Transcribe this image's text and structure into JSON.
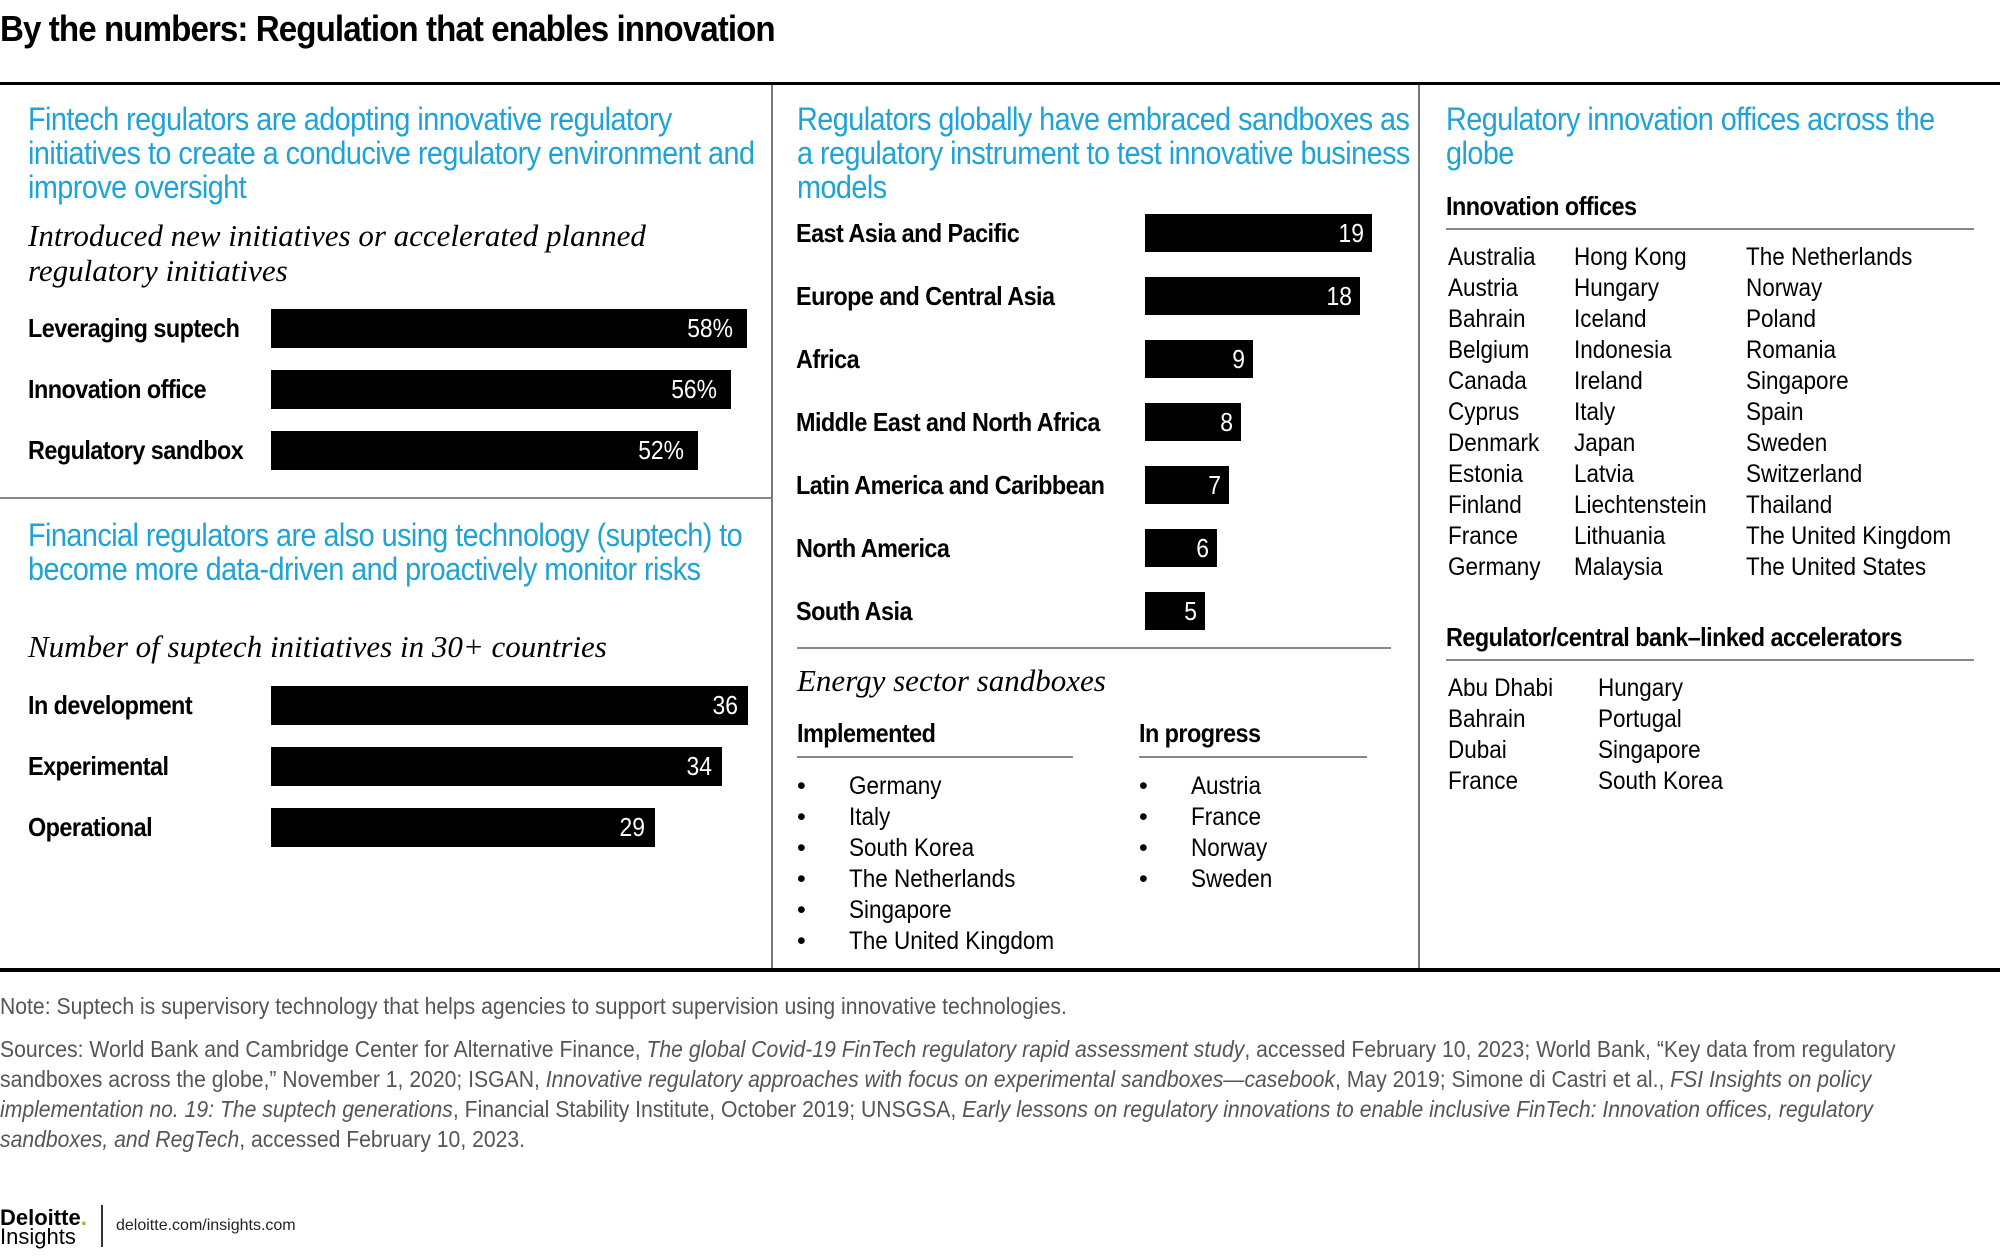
{
  "title": "By the numbers: Regulation that enables innovation",
  "col1": {
    "section1": {
      "heading": "Fintech regulators are adopting innovative regulatory initiatives to create a conducive regulatory environment and improve oversight",
      "subtitle": "Introduced new initiatives or accelerated planned regulatory initiatives"
    },
    "section2": {
      "heading": "Financial regulators are also using technology (suptech) to become more data-driven and proactively monitor risks",
      "subtitle": "Number of suptech initiatives in 30+ countries"
    }
  },
  "col2": {
    "heading": "Regulators globally have embraced sandboxes as a regulatory instrument to test innovative business models",
    "energy": {
      "subtitle": "Energy sector sandboxes",
      "implemented_label": "Implemented",
      "implemented": [
        "Germany",
        "Italy",
        "South Korea",
        "The Netherlands",
        "Singapore",
        "The United Kingdom"
      ],
      "in_progress_label": "In progress",
      "in_progress": [
        "Austria",
        "France",
        "Norway",
        "Sweden"
      ],
      "bullet": "•"
    }
  },
  "col3": {
    "heading": "Regulatory innovation offices across the globe",
    "offices_label": "Innovation offices",
    "offices": [
      [
        "Australia",
        "Austria",
        "Bahrain",
        "Belgium",
        "Canada",
        "Cyprus",
        "Denmark",
        "Estonia",
        "Finland",
        "France",
        "Germany"
      ],
      [
        "Hong Kong",
        "Hungary",
        "Iceland",
        "Indonesia",
        "Ireland",
        "Italy",
        "Japan",
        "Latvia",
        "Liechtenstein",
        "Lithuania",
        "Malaysia"
      ],
      [
        "The Netherlands",
        "Norway",
        "Poland",
        "Romania",
        "Singapore",
        "Spain",
        "Sweden",
        "Switzerland",
        "Thailand",
        "The United Kingdom",
        "The United States"
      ]
    ],
    "accelerators_label": "Regulator/central bank–linked accelerators",
    "accelerators": [
      [
        "Abu Dhabi",
        "Bahrain",
        "Dubai",
        "France"
      ],
      [
        "Hungary",
        "Portugal",
        "Singapore",
        "South Korea"
      ]
    ]
  },
  "footer": {
    "note": "Note: Suptech is supervisory technology that helps agencies to support supervision using innovative technologies.",
    "sources_parts": [
      {
        "t": "Sources: World Bank and Cambridge Center for Alternative Finance, ",
        "i": false
      },
      {
        "t": "The global Covid-19 FinTech regulatory rapid assessment study",
        "i": true
      },
      {
        "t": ", accessed February 10, 2023; World Bank, “Key data from regulatory sandboxes across the globe,” November 1, 2020; ISGAN, ",
        "i": false
      },
      {
        "t": "Innovative regulatory approaches with focus on experimental sandboxes—casebook",
        "i": true
      },
      {
        "t": ", May 2019; Simone di Castri et al., ",
        "i": false
      },
      {
        "t": "FSI Insights on policy implementation no. 19: The suptech generations",
        "i": true
      },
      {
        "t": ", Financial Stability Institute, October 2019; UNSGSA, ",
        "i": false
      },
      {
        "t": "Early lessons on regulatory innovations to enable inclusive FinTech: Innovation offices, regulatory sandboxes, and RegTech",
        "i": true
      },
      {
        "t": ", accessed February 10, 2023.",
        "i": false
      }
    ],
    "logo_brand": "Deloitte",
    "logo_dot": ".",
    "logo_sub": "Insights",
    "url": "deloitte.com/insights.com"
  },
  "colors": {
    "accent_blue": "#1FA3D6",
    "bar": "#000000",
    "logo_green": "#86BC25"
  },
  "chart_data": [
    {
      "type": "bar",
      "orientation": "horizontal",
      "title": "Introduced new initiatives or accelerated planned regulatory initiatives",
      "categories": [
        "Leveraging suptech",
        "Innovation office",
        "Regulatory sandbox"
      ],
      "values": [
        58,
        56,
        52
      ],
      "value_labels": [
        "58%",
        "56%",
        "52%"
      ],
      "unit": "%",
      "xlim": [
        0,
        58
      ],
      "grid": false
    },
    {
      "type": "bar",
      "orientation": "horizontal",
      "title": "Number of suptech initiatives in 30+ countries",
      "categories": [
        "In development",
        "Experimental",
        "Operational"
      ],
      "values": [
        36,
        34,
        29
      ],
      "value_labels": [
        "36",
        "34",
        "29"
      ],
      "xlim": [
        0,
        36
      ],
      "grid": false
    },
    {
      "type": "bar",
      "orientation": "horizontal",
      "title": "Regulators globally have embraced sandboxes as a regulatory instrument to test innovative business models",
      "categories": [
        "East Asia and Pacific",
        "Europe and Central Asia",
        "Africa",
        "Middle East and North Africa",
        "Latin America and Caribbean",
        "North America",
        "South Asia"
      ],
      "values": [
        19,
        18,
        9,
        8,
        7,
        6,
        5
      ],
      "value_labels": [
        "19",
        "18",
        "9",
        "8",
        "7",
        "6",
        "5"
      ],
      "xlim": [
        0,
        19
      ],
      "grid": false
    }
  ]
}
